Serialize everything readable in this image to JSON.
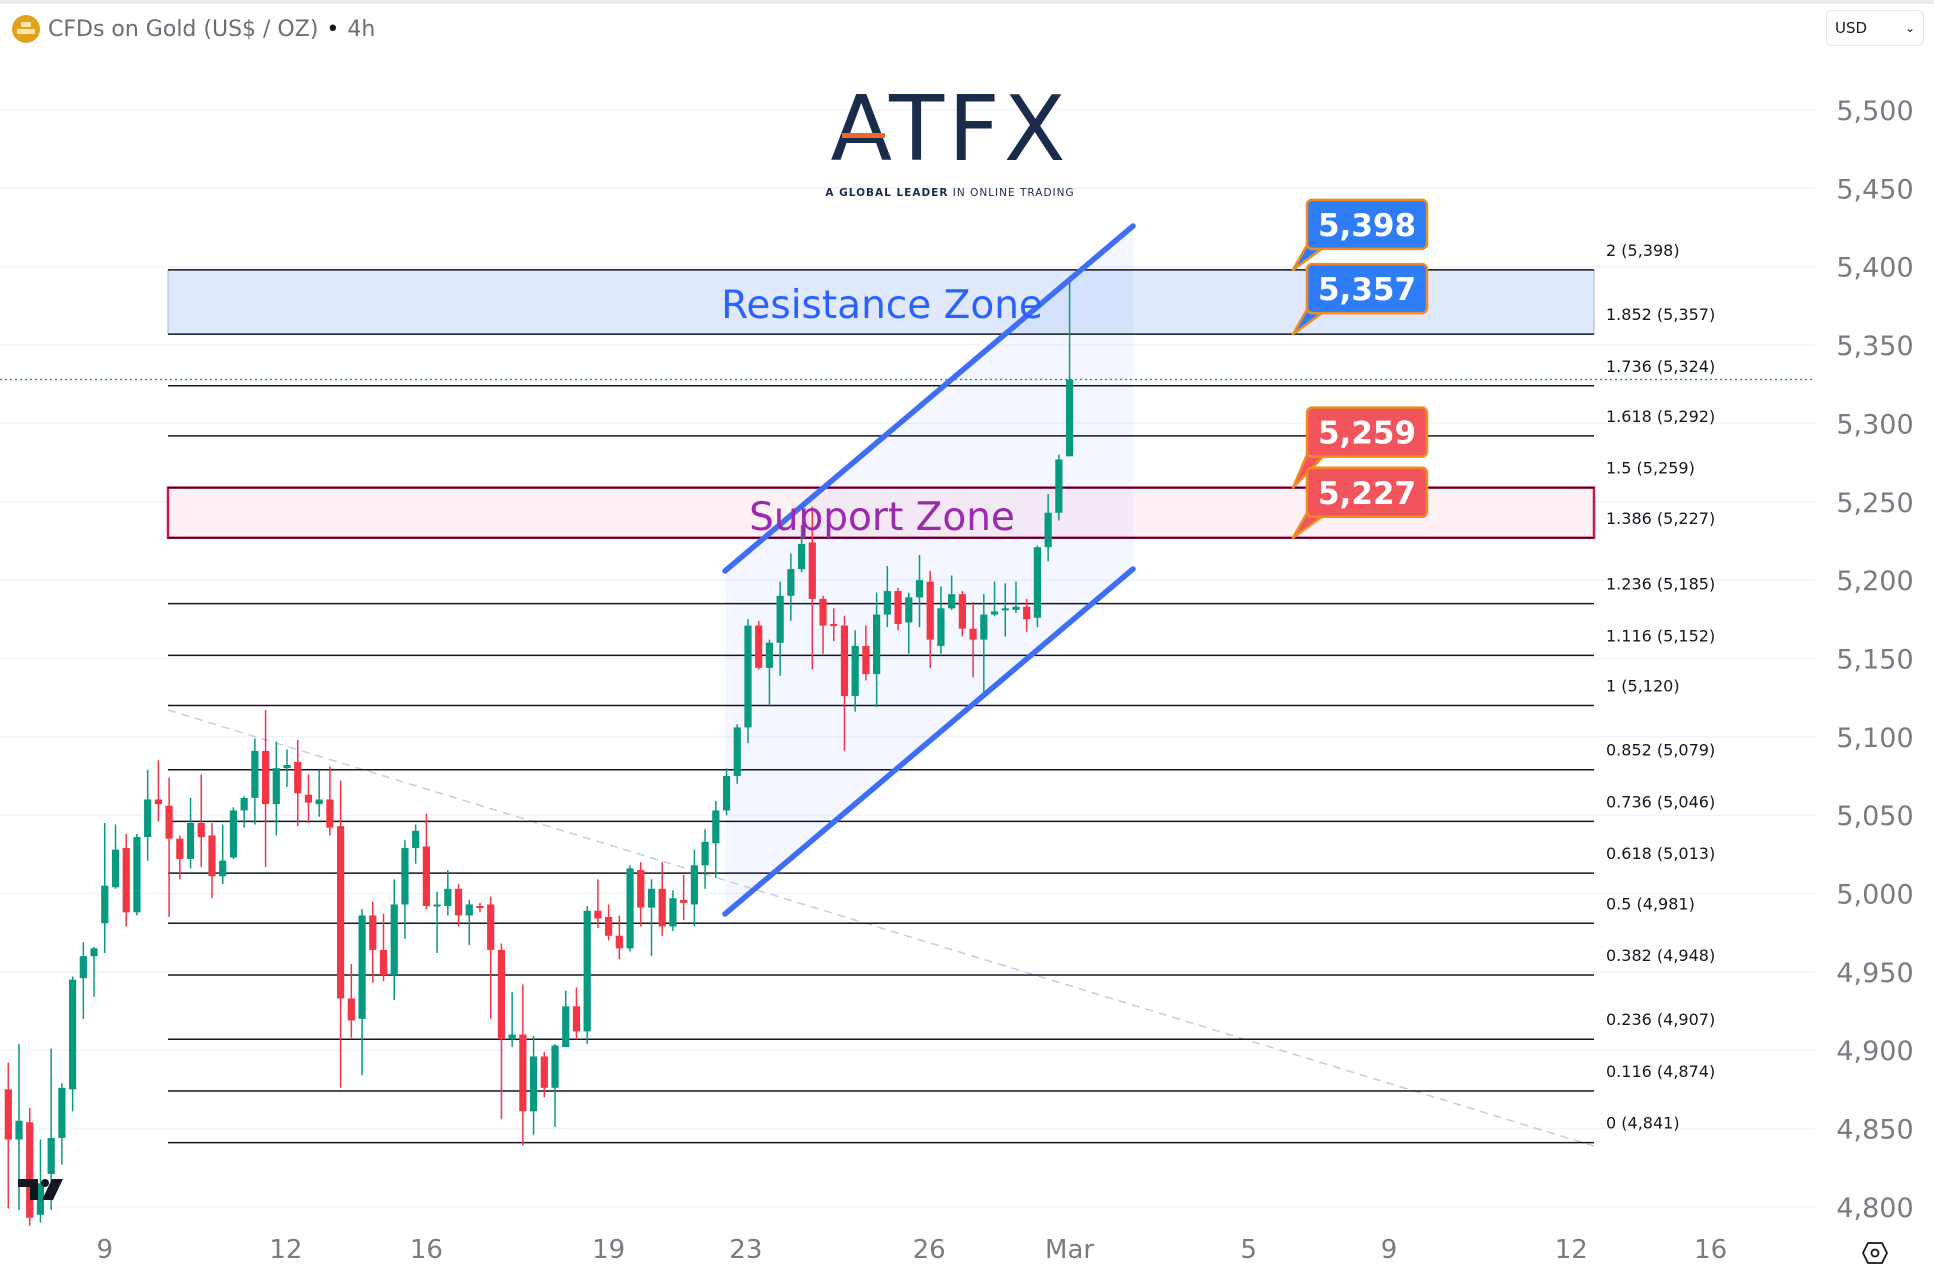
{
  "header": {
    "symbol_title": "CFDs on Gold (US$ / OZ)",
    "separator": "•",
    "interval": "4h",
    "symbol_icon": "gold-bars-icon"
  },
  "currency_select": {
    "value": "USD",
    "icon": "chevron-down-icon"
  },
  "logo": {
    "name": "ATFX",
    "tagline_bold": "A GLOBAL LEADER",
    "tagline_rest": "IN ONLINE TRADING"
  },
  "zones": {
    "resistance": {
      "label": "Resistance Zone",
      "from": 5357,
      "to": 5398,
      "color": "#2962ff"
    },
    "support": {
      "label": "Support Zone",
      "from": 5227,
      "to": 5259,
      "color": "#9c27b0",
      "border": "#c2185b"
    }
  },
  "callouts": [
    {
      "text": "5,398",
      "price": 5398,
      "color": "#2f7df6"
    },
    {
      "text": "5,357",
      "price": 5357,
      "color": "#2f7df6"
    },
    {
      "text": "5,259",
      "price": 5259,
      "color": "#f2545b"
    },
    {
      "text": "5,227",
      "price": 5227,
      "color": "#f2545b"
    }
  ],
  "chart_data": {
    "type": "candlestick",
    "timeframe": "4h",
    "ylim": [
      4800,
      5500
    ],
    "y_ticks": [
      "5,500",
      "5,450",
      "5,400",
      "5,350",
      "5,300",
      "5,250",
      "5,200",
      "5,150",
      "5,100",
      "5,050",
      "5,000",
      "4,950",
      "4,900",
      "4,850",
      "4,800"
    ],
    "y_tick_values": [
      5500,
      5450,
      5400,
      5350,
      5300,
      5250,
      5200,
      5150,
      5100,
      5050,
      5000,
      4950,
      4900,
      4850,
      4800
    ],
    "x_ticks": [
      {
        "label": "9",
        "bar": 9
      },
      {
        "label": "12",
        "bar": 25.9
      },
      {
        "label": "16",
        "bar": 39
      },
      {
        "label": "19",
        "bar": 56
      },
      {
        "label": "23",
        "bar": 68.8
      },
      {
        "label": "26",
        "bar": 85.9
      },
      {
        "label": "Mar",
        "bar": 99
      },
      {
        "label": "5",
        "bar": 115.7
      },
      {
        "label": "9",
        "bar": 128.8
      },
      {
        "label": "12",
        "bar": 145.8
      },
      {
        "label": "16",
        "bar": 158.8
      }
    ],
    "up_color": "#089981",
    "down_color": "#f23645",
    "last_price": 5328,
    "candles_ohlc": [
      [
        4875,
        4892,
        4799,
        4843
      ],
      [
        4843,
        4904,
        4798,
        4855
      ],
      [
        4854,
        4863,
        4788,
        4793
      ],
      [
        4795,
        4843,
        4790,
        4815
      ],
      [
        4821,
        4901,
        4798,
        4844
      ],
      [
        4844,
        4879,
        4827,
        4876
      ],
      [
        4875,
        4947,
        4861,
        4945
      ],
      [
        4946,
        4969,
        4920,
        4960
      ],
      [
        4960,
        4966,
        4934,
        4965
      ],
      [
        4981,
        5045,
        4962,
        5005
      ],
      [
        5004,
        5044,
        5003,
        5028
      ],
      [
        5029,
        5038,
        4979,
        4988
      ],
      [
        4988,
        5038,
        4986,
        5036
      ],
      [
        5036,
        5079,
        5021,
        5060
      ],
      [
        5060,
        5085,
        5046,
        5057
      ],
      [
        5056,
        5074,
        4985,
        5035
      ],
      [
        5035,
        5037,
        5009,
        5022
      ],
      [
        5022,
        5061,
        5016,
        5045
      ],
      [
        5045,
        5076,
        5017,
        5036
      ],
      [
        5037,
        5045,
        4997,
        5011
      ],
      [
        5011,
        5044,
        5006,
        5021
      ],
      [
        5023,
        5055,
        5022,
        5053
      ],
      [
        5053,
        5062,
        5042,
        5061
      ],
      [
        5061,
        5099,
        5044,
        5091
      ],
      [
        5091,
        5117,
        5017,
        5057
      ],
      [
        5057,
        5097,
        5037,
        5080
      ],
      [
        5080,
        5092,
        5068,
        5082
      ],
      [
        5084,
        5098,
        5043,
        5064
      ],
      [
        5063,
        5076,
        5045,
        5058
      ],
      [
        5057,
        5079,
        5049,
        5060
      ],
      [
        5060,
        5081,
        5037,
        5042
      ],
      [
        5043,
        5072,
        4876,
        4933
      ],
      [
        4933,
        4955,
        4908,
        4919
      ],
      [
        4920,
        4990,
        4884,
        4986
      ],
      [
        4986,
        4995,
        4943,
        4964
      ],
      [
        4964,
        4987,
        4944,
        4948
      ],
      [
        4948,
        5009,
        4932,
        4993
      ],
      [
        4993,
        5034,
        4971,
        5029
      ],
      [
        5029,
        5044,
        5019,
        5040
      ],
      [
        5030,
        5051,
        4990,
        4992
      ],
      [
        4992,
        5001,
        4962,
        4993
      ],
      [
        4992,
        5015,
        4986,
        5003
      ],
      [
        5003,
        5006,
        4979,
        4986
      ],
      [
        4986,
        4996,
        4967,
        4993
      ],
      [
        4992,
        4994,
        4988,
        4991
      ],
      [
        4993,
        4998,
        4920,
        4964
      ],
      [
        4964,
        4968,
        4856,
        4907
      ],
      [
        4907,
        4937,
        4902,
        4910
      ],
      [
        4910,
        4942,
        4839,
        4861
      ],
      [
        4861,
        4909,
        4846,
        4896
      ],
      [
        4896,
        4899,
        4870,
        4876
      ],
      [
        4876,
        4904,
        4851,
        4903
      ],
      [
        4902,
        4938,
        4902,
        4928
      ],
      [
        4928,
        4940,
        4907,
        4912
      ],
      [
        4912,
        4992,
        4904,
        4989
      ],
      [
        4989,
        5009,
        4978,
        4984
      ],
      [
        4985,
        4993,
        4970,
        4973
      ],
      [
        4973,
        4986,
        4958,
        4965
      ],
      [
        4965,
        5018,
        4963,
        5016
      ],
      [
        5015,
        5020,
        4979,
        4991
      ],
      [
        4991,
        5009,
        4960,
        5003
      ],
      [
        5003,
        5020,
        4973,
        4979
      ],
      [
        4979,
        5002,
        4976,
        4997
      ],
      [
        4996,
        5012,
        4983,
        4994
      ],
      [
        4993,
        5028,
        4979,
        5018
      ],
      [
        5018,
        5041,
        5003,
        5033
      ],
      [
        5032,
        5059,
        5010,
        5053
      ],
      [
        5053,
        5080,
        5050,
        5075
      ],
      [
        5075,
        5108,
        5070,
        5106
      ],
      [
        5106,
        5175,
        5096,
        5171
      ],
      [
        5171,
        5174,
        5143,
        5144
      ],
      [
        5144,
        5162,
        5120,
        5160
      ],
      [
        5160,
        5199,
        5139,
        5190
      ],
      [
        5190,
        5217,
        5174,
        5207
      ],
      [
        5207,
        5235,
        5205,
        5223
      ],
      [
        5224,
        5247,
        5143,
        5188
      ],
      [
        5188,
        5190,
        5153,
        5171
      ],
      [
        5172,
        5182,
        5161,
        5171
      ],
      [
        5171,
        5177,
        5091,
        5126
      ],
      [
        5126,
        5168,
        5116,
        5158
      ],
      [
        5158,
        5171,
        5136,
        5140
      ],
      [
        5140,
        5192,
        5119,
        5178
      ],
      [
        5178,
        5209,
        5170,
        5193
      ],
      [
        5193,
        5195,
        5168,
        5172
      ],
      [
        5173,
        5192,
        5153,
        5189
      ],
      [
        5189,
        5216,
        5170,
        5200
      ],
      [
        5199,
        5206,
        5144,
        5162
      ],
      [
        5158,
        5196,
        5153,
        5182
      ],
      [
        5182,
        5203,
        5181,
        5191
      ],
      [
        5191,
        5193,
        5164,
        5169
      ],
      [
        5169,
        5186,
        5138,
        5162
      ],
      [
        5162,
        5191,
        5128,
        5178
      ],
      [
        5178,
        5199,
        5177,
        5180
      ],
      [
        5181,
        5198,
        5164,
        5182
      ],
      [
        5181,
        5199,
        5179,
        5183
      ],
      [
        5183,
        5188,
        5167,
        5175
      ],
      [
        5176,
        5222,
        5170,
        5221
      ],
      [
        5221,
        5255,
        5212,
        5243
      ],
      [
        5243,
        5280,
        5238,
        5277
      ],
      [
        5279,
        5393,
        5279,
        5328
      ]
    ],
    "fib_levels": [
      {
        "label": "2 (5,398)",
        "price": 5398
      },
      {
        "label": "1.852 (5,357)",
        "price": 5357
      },
      {
        "label": "1.736 (5,324)",
        "price": 5324
      },
      {
        "label": "1.618 (5,292)",
        "price": 5292
      },
      {
        "label": "1.5 (5,259)",
        "price": 5259
      },
      {
        "label": "1.386 (5,227)",
        "price": 5227
      },
      {
        "label": "1.236 (5,185)",
        "price": 5185
      },
      {
        "label": "1.116 (5,152)",
        "price": 5152
      },
      {
        "label": "1 (5,120)",
        "price": 5120
      },
      {
        "label": "0.852 (5,079)",
        "price": 5079
      },
      {
        "label": "0.736 (5,046)",
        "price": 5046
      },
      {
        "label": "0.618 (5,013)",
        "price": 5013
      },
      {
        "label": "0.5 (4,981)",
        "price": 4981
      },
      {
        "label": "0.382 (4,948)",
        "price": 4948
      },
      {
        "label": "0.236 (4,907)",
        "price": 4907
      },
      {
        "label": "0.116 (4,874)",
        "price": 4874
      },
      {
        "label": "0 (4,841)",
        "price": 4841
      }
    ],
    "channel_color": "#3d6ef5",
    "grid": true
  },
  "footer": {
    "settings_icon": "settings-hexagon-icon",
    "brand_icon": "tradingview-logo-icon"
  }
}
